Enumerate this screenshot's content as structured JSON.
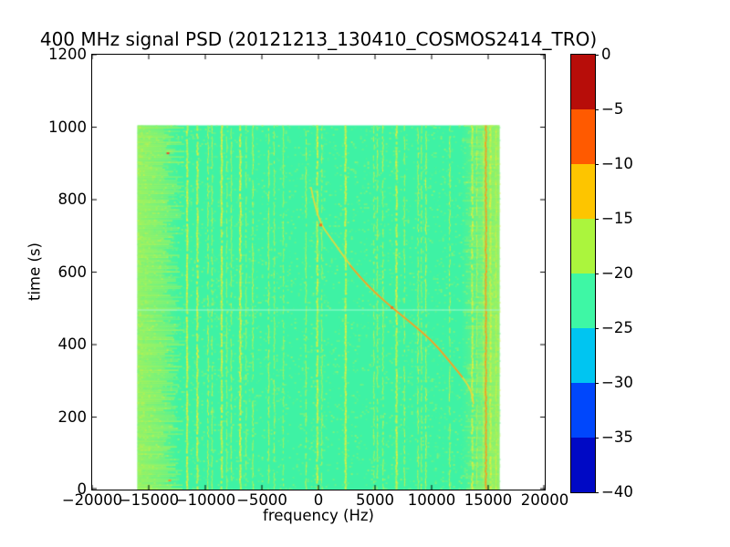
{
  "chart_data": {
    "type": "heatmap",
    "title": "400 MHz signal PSD (20121213_130410_COSMOS2414_TRO)",
    "xlabel": "frequency (Hz)",
    "ylabel": "time (s)",
    "xlim": [
      -20000,
      20000
    ],
    "ylim": [
      0,
      1200
    ],
    "grid": false,
    "x_ticks": {
      "values": [
        -20000,
        -15000,
        -10000,
        -5000,
        0,
        5000,
        10000,
        15000,
        20000
      ],
      "labels": [
        "−20000",
        "−15000",
        "−10000",
        "−5000",
        "0",
        "5000",
        "10000",
        "15000",
        "20000"
      ]
    },
    "y_ticks": {
      "values": [
        0,
        200,
        400,
        600,
        800,
        1000,
        1200
      ],
      "labels": [
        "0",
        "200",
        "400",
        "600",
        "800",
        "1000",
        "1200"
      ]
    },
    "data_extent": {
      "freq_hz": [
        -16000,
        16000
      ],
      "time_s": [
        0,
        1005
      ]
    },
    "colorbar": {
      "levels": [
        0,
        -5,
        -10,
        -15,
        -20,
        -25,
        -30,
        -35,
        -40
      ],
      "labels": [
        "0",
        "−5",
        "−10",
        "−15",
        "−20",
        "−25",
        "−30",
        "−35",
        "−40"
      ],
      "segment_colors_top_to_bottom": [
        "#b70d09",
        "#ff5a00",
        "#fdc500",
        "#abf53d",
        "#3ef7a5",
        "#00c5f1",
        "#0047fc",
        "#0009c5"
      ]
    },
    "colors": {
      "base": "#3ef2a4",
      "stripe": "#bdf24b",
      "line_yellow": "#e2ee3c",
      "line_orange": "#f5a022",
      "scan_line": "#9ef9cf",
      "speckle": [
        "#68f38a",
        "#99f366",
        "#c5f44c",
        "#def03f"
      ]
    },
    "edge_bands": {
      "left_freq_hz": [
        -16000,
        -13200
      ],
      "right_freq_hz": [
        13000,
        16000
      ]
    },
    "rfi_lines": [
      {
        "freq_hz": -11600,
        "strength": 0.9
      },
      {
        "freq_hz": -10700,
        "strength": 0.8
      },
      {
        "freq_hz": -9760,
        "strength": 0.65
      },
      {
        "freq_hz": -9400,
        "strength": 0.5
      },
      {
        "freq_hz": -8550,
        "strength": 0.85
      },
      {
        "freq_hz": -8100,
        "strength": 0.45
      },
      {
        "freq_hz": -7700,
        "strength": 0.5
      },
      {
        "freq_hz": -6900,
        "strength": 0.9
      },
      {
        "freq_hz": -6400,
        "strength": 0.4
      },
      {
        "freq_hz": -5800,
        "strength": 0.6
      },
      {
        "freq_hz": -4400,
        "strength": 0.65
      },
      {
        "freq_hz": -3900,
        "strength": 0.5
      },
      {
        "freq_hz": -3100,
        "strength": 0.45
      },
      {
        "freq_hz": -1100,
        "strength": 0.6
      },
      {
        "freq_hz": -100,
        "strength": 0.8
      },
      {
        "freq_hz": 300,
        "strength": 0.45
      },
      {
        "freq_hz": 2400,
        "strength": 0.9
      },
      {
        "freq_hz": 4900,
        "strength": 0.5
      },
      {
        "freq_hz": 5200,
        "strength": 0.55
      },
      {
        "freq_hz": 5700,
        "strength": 0.6
      },
      {
        "freq_hz": 6900,
        "strength": 0.8
      },
      {
        "freq_hz": 7600,
        "strength": 0.55
      },
      {
        "freq_hz": 8800,
        "strength": 0.55
      },
      {
        "freq_hz": 9100,
        "strength": 0.5
      },
      {
        "freq_hz": 9500,
        "strength": 0.7
      },
      {
        "freq_hz": 11600,
        "strength": 0.6
      },
      {
        "freq_hz": 13600,
        "strength": 0.75
      },
      {
        "freq_hz": 14000,
        "strength": 0.55
      },
      {
        "freq_hz": 14600,
        "strength": 0.65
      },
      {
        "freq_hz": 14800,
        "strength": 1.0
      },
      {
        "freq_hz": 15200,
        "strength": 0.75
      },
      {
        "freq_hz": 15700,
        "strength": 0.65
      }
    ],
    "scan_line_time_s": 497,
    "doppler_track": {
      "points_freq_time": [
        [
          -650,
          833
        ],
        [
          -100,
          745
        ],
        [
          1300,
          685
        ],
        [
          2800,
          618
        ],
        [
          4400,
          560
        ],
        [
          6500,
          502
        ],
        [
          8100,
          462
        ],
        [
          10000,
          412
        ],
        [
          11400,
          361
        ],
        [
          12700,
          311
        ],
        [
          13500,
          275
        ],
        [
          13700,
          238
        ]
      ],
      "color_ends": "#e8d83a",
      "color_core": "#f09a28",
      "hotspots": [
        {
          "freq_hz": 200,
          "time_s": 730
        },
        {
          "freq_hz": 6500,
          "time_s": 502
        }
      ]
    },
    "artifacts": [
      {
        "freq_hz": -13300,
        "time_s": 928,
        "color": "#f04828"
      },
      {
        "freq_hz": -13150,
        "time_s": 25,
        "color": "#f09830"
      }
    ]
  }
}
